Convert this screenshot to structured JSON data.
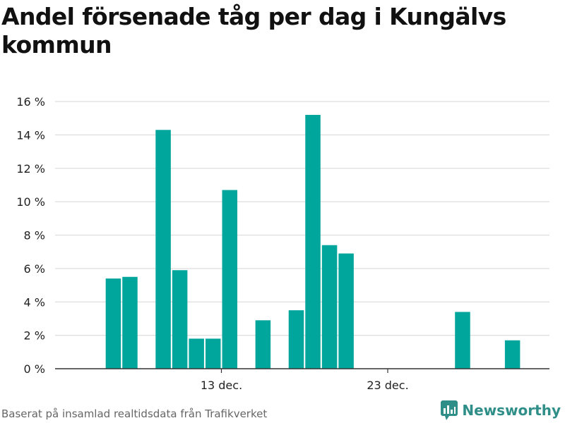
{
  "title": "Andel försenade tåg per dag i Kungälvs kommun",
  "footer": {
    "source": "Baserat på insamlad realtidsdata från Trafikverket",
    "brand": "Newsworthy"
  },
  "colors": {
    "bar": "#00a59c",
    "grid": "#dddddd",
    "axis": "#333333",
    "brand": "#2f8f88"
  },
  "chart_data": {
    "type": "bar",
    "title": "Andel försenade tåg per dag i Kungälvs kommun",
    "xlabel": "",
    "ylabel": "",
    "ylim": [
      0,
      16
    ],
    "y_ticks": [
      0,
      2,
      4,
      6,
      8,
      10,
      12,
      14,
      16
    ],
    "y_tick_labels": [
      "0 %",
      "2 %",
      "4 %",
      "6 %",
      "8 %",
      "10 %",
      "12 %",
      "14 %",
      "16 %"
    ],
    "x_tick_labels": [
      {
        "label": "13 dec.",
        "day": 13
      },
      {
        "label": "23 dec.",
        "day": 23
      }
    ],
    "grid": true,
    "legend": "none",
    "days": [
      3,
      4,
      5,
      6,
      7,
      8,
      9,
      10,
      11,
      12,
      13,
      14,
      15,
      16,
      17,
      18,
      19,
      20,
      21,
      22,
      23,
      24,
      25,
      26,
      27,
      28,
      29,
      30,
      31
    ],
    "values": [
      null,
      null,
      null,
      5.4,
      5.5,
      null,
      14.3,
      5.9,
      1.8,
      1.8,
      10.7,
      null,
      2.9,
      null,
      3.5,
      15.2,
      7.4,
      6.9,
      0,
      0,
      0,
      0,
      0,
      null,
      3.4,
      null,
      null,
      1.7,
      null
    ]
  }
}
